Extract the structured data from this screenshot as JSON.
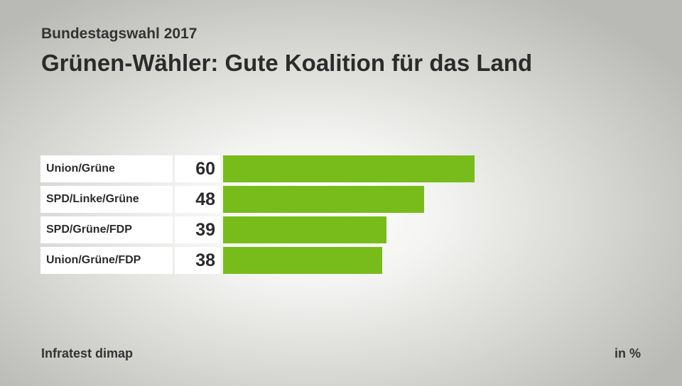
{
  "subtitle": "Bundestagswahl 2017",
  "title": "Grünen-Wähler: Gute Koalition für das Land",
  "source": "Infratest dimap",
  "unit": "in %",
  "bar_color": "#78bc1c",
  "chart_data": {
    "type": "bar",
    "orientation": "horizontal",
    "title": "Grünen-Wähler: Gute Koalition für das Land",
    "subtitle": "Bundestagswahl 2017",
    "categories": [
      "Union/Grüne",
      "SPD/Linke/Grüne",
      "SPD/Grüne/FDP",
      "Union/Grüne/FDP"
    ],
    "values": [
      60,
      48,
      39,
      38
    ],
    "xlim": [
      0,
      100
    ],
    "unit": "in %",
    "grid": false
  }
}
